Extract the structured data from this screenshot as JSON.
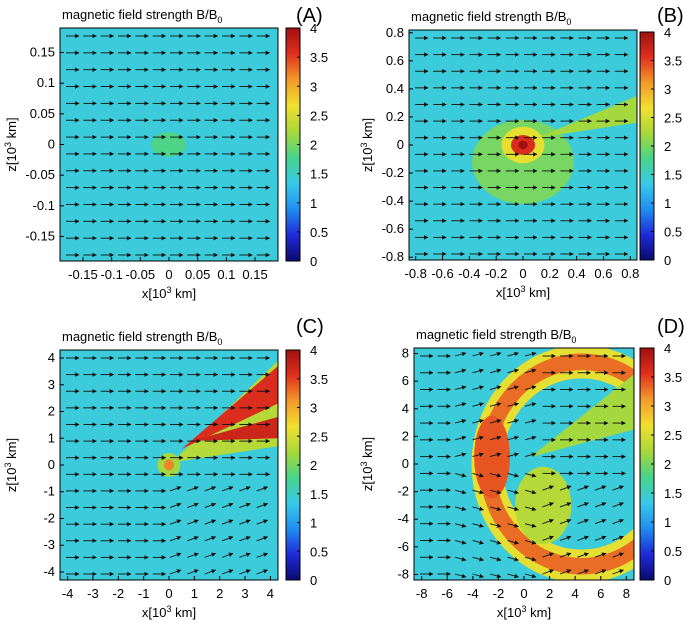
{
  "figure": {
    "type": "heatmap-quiver-grid"
  },
  "colorbar": {
    "range": [
      0,
      4
    ],
    "ticks": [
      0,
      0.5,
      1,
      1.5,
      2,
      2.5,
      3,
      3.5,
      4
    ],
    "tick_labels": [
      "0",
      "0.5",
      "1",
      "1.5",
      "2",
      "2.5",
      "3",
      "3.5",
      "4"
    ],
    "colormap": [
      "#0a0a6e",
      "#1f2bd8",
      "#1f8ef0",
      "#39c9e8",
      "#48d48a",
      "#a8d83a",
      "#f0e030",
      "#f29a2a",
      "#e0301e",
      "#a01010"
    ]
  },
  "chart_data": [
    {
      "type": "heatmap",
      "panel_label": "(A)",
      "title": "magnetic field strength B/B",
      "title_sub": "0",
      "xlabel": "x[10",
      "xlabel_sup": "3",
      "xlabel_unit": " km]",
      "ylabel": "z[10",
      "ylabel_sup": "3",
      "ylabel_unit": " km]",
      "xlim": [
        -0.19,
        0.19
      ],
      "ylim": [
        -0.19,
        0.19
      ],
      "xticks": [
        -0.15,
        -0.1,
        -0.05,
        0,
        0.05,
        0.1,
        0.15
      ],
      "xtick_labels": [
        "-0.15",
        "-0.1",
        "-0.05",
        "0",
        "0.05",
        "0.1",
        "0.15"
      ],
      "yticks": [
        -0.15,
        -0.1,
        -0.05,
        0,
        0.05,
        0.1,
        0.15
      ],
      "ytick_labels": [
        "-0.15",
        "-0.1",
        "-0.05",
        "0",
        "0.05",
        "0.1",
        "0.15"
      ],
      "background_value": 1.4,
      "features": [
        {
          "kind": "spot",
          "x": 0,
          "y": 0,
          "rx": 0.03,
          "ry": 0.02,
          "value": 1.8
        }
      ],
      "vector_field": {
        "direction": "+x",
        "region": "uniform"
      }
    },
    {
      "type": "heatmap",
      "panel_label": "(B)",
      "title": "magnetic field strength B/B",
      "title_sub": "0",
      "xlabel": "x[10",
      "xlabel_sup": "3",
      "xlabel_unit": " km]",
      "ylabel": "z[10",
      "ylabel_sup": "3",
      "ylabel_unit": " km]",
      "xlim": [
        -0.85,
        0.85
      ],
      "ylim": [
        -0.82,
        0.82
      ],
      "xticks": [
        -0.8,
        -0.6,
        -0.4,
        -0.2,
        0,
        0.2,
        0.4,
        0.6,
        0.8
      ],
      "xtick_labels": [
        "-0.8",
        "-0.6",
        "-0.4",
        "-0.2",
        "0",
        "0.2",
        "0.4",
        "0.6",
        "0.8"
      ],
      "yticks": [
        -0.8,
        -0.6,
        -0.4,
        -0.2,
        0,
        0.2,
        0.4,
        0.6,
        0.8
      ],
      "ytick_labels": [
        "-0.8",
        "-0.6",
        "-0.4",
        "-0.2",
        "0",
        "0.2",
        "0.4",
        "0.6",
        "0.8"
      ],
      "background_value": 1.4,
      "features": [
        {
          "kind": "spot",
          "x": 0,
          "y": -0.12,
          "rx": 0.38,
          "ry": 0.3,
          "value": 2.0
        },
        {
          "kind": "spot",
          "x": 0,
          "y": 0,
          "rx": 0.16,
          "ry": 0.13,
          "value": 2.6
        },
        {
          "kind": "spot",
          "x": 0,
          "y": 0,
          "rx": 0.09,
          "ry": 0.07,
          "value": 3.6
        },
        {
          "kind": "spot",
          "x": 0,
          "y": 0,
          "rx": 0.035,
          "ry": 0.03,
          "value": 4.0
        },
        {
          "kind": "wedge",
          "apex": [
            0.1,
            0.05
          ],
          "p1": [
            0.85,
            0.35
          ],
          "p2": [
            0.85,
            0.16
          ],
          "value": 2.2
        }
      ],
      "vector_field": {
        "direction": "+x",
        "region": "uniform"
      }
    },
    {
      "type": "heatmap",
      "panel_label": "(C)",
      "title": "magnetic field strength B/B",
      "title_sub": "0",
      "xlabel": "x[10",
      "xlabel_sup": "3",
      "xlabel_unit": " km]",
      "ylabel": "z[10",
      "ylabel_sup": "3",
      "ylabel_unit": " km]",
      "xlim": [
        -4.3,
        4.3
      ],
      "ylim": [
        -4.3,
        4.3
      ],
      "xticks": [
        -4,
        -3,
        -2,
        -1,
        0,
        1,
        2,
        3,
        4
      ],
      "xtick_labels": [
        "-4",
        "-3",
        "-2",
        "-1",
        "0",
        "1",
        "2",
        "3",
        "4"
      ],
      "yticks": [
        -4,
        -3,
        -2,
        -1,
        0,
        1,
        2,
        3,
        4
      ],
      "ytick_labels": [
        "-4",
        "-3",
        "-2",
        "-1",
        "0",
        "1",
        "2",
        "3",
        "4"
      ],
      "background_value": 1.4,
      "features": [
        {
          "kind": "wedge",
          "apex": [
            0.1,
            0.1
          ],
          "p1": [
            4.3,
            3.9
          ],
          "p2": [
            4.3,
            0.7
          ],
          "value": 2.3
        },
        {
          "kind": "wedge",
          "apex": [
            0.5,
            0.6
          ],
          "p1": [
            4.3,
            3.7
          ],
          "p2": [
            4.3,
            2.3
          ],
          "value": 3.6
        },
        {
          "kind": "wedge",
          "apex": [
            0.9,
            0.9
          ],
          "p1": [
            4.3,
            1.8
          ],
          "p2": [
            4.3,
            1.0
          ],
          "value": 3.7
        },
        {
          "kind": "spot",
          "x": 0,
          "y": 0,
          "rx": 0.45,
          "ry": 0.45,
          "value": 2.2
        },
        {
          "kind": "spot",
          "x": 0,
          "y": 0,
          "rx": 0.2,
          "ry": 0.2,
          "value": 3.2
        }
      ],
      "vector_field": {
        "direction": "+x",
        "region": "uniform",
        "deflected_near": [
          1.5,
          -0.5
        ]
      }
    },
    {
      "type": "heatmap",
      "panel_label": "(D)",
      "title": "magnetic field strength B/B",
      "title_sub": "0",
      "xlabel": "x[10",
      "xlabel_sup": "3",
      "xlabel_unit": " km]",
      "ylabel": "z[10",
      "ylabel_sup": "3",
      "ylabel_unit": " km]",
      "xlim": [
        -8.6,
        8.6
      ],
      "ylim": [
        -8.4,
        8.4
      ],
      "xticks": [
        -8,
        -6,
        -4,
        -2,
        0,
        2,
        4,
        6,
        8
      ],
      "xtick_labels": [
        "-8",
        "-6",
        "-4",
        "-2",
        "0",
        "2",
        "4",
        "6",
        "8"
      ],
      "yticks": [
        -8,
        -6,
        -4,
        -2,
        0,
        2,
        4,
        6,
        8
      ],
      "ytick_labels": [
        "-8",
        "-6",
        "-4",
        "-2",
        "0",
        "2",
        "4",
        "6",
        "8"
      ],
      "background_value": 1.4,
      "features": [
        {
          "kind": "shell",
          "cx": 4.5,
          "cy": 0,
          "r_out": 8.6,
          "r_in": 6.2,
          "value": 2.6
        },
        {
          "kind": "shell",
          "cx": 4.5,
          "cy": 0,
          "r_out": 8.0,
          "r_in": 6.8,
          "value": 3.3
        },
        {
          "kind": "spot",
          "x": -2.5,
          "y": 0.5,
          "rx": 1.4,
          "ry": 3.0,
          "value": 3.4
        },
        {
          "kind": "wedge",
          "apex": [
            0.5,
            0.5
          ],
          "p1": [
            8.6,
            6.5
          ],
          "p2": [
            8.6,
            2.5
          ],
          "value": 2.2
        },
        {
          "kind": "spot",
          "x": 1.5,
          "y": -3.0,
          "rx": 2.2,
          "ry": 2.8,
          "value": 2.3
        }
      ],
      "vector_field": {
        "direction": "+x",
        "region": "uniform",
        "deflected_inside_shell": true
      }
    }
  ]
}
